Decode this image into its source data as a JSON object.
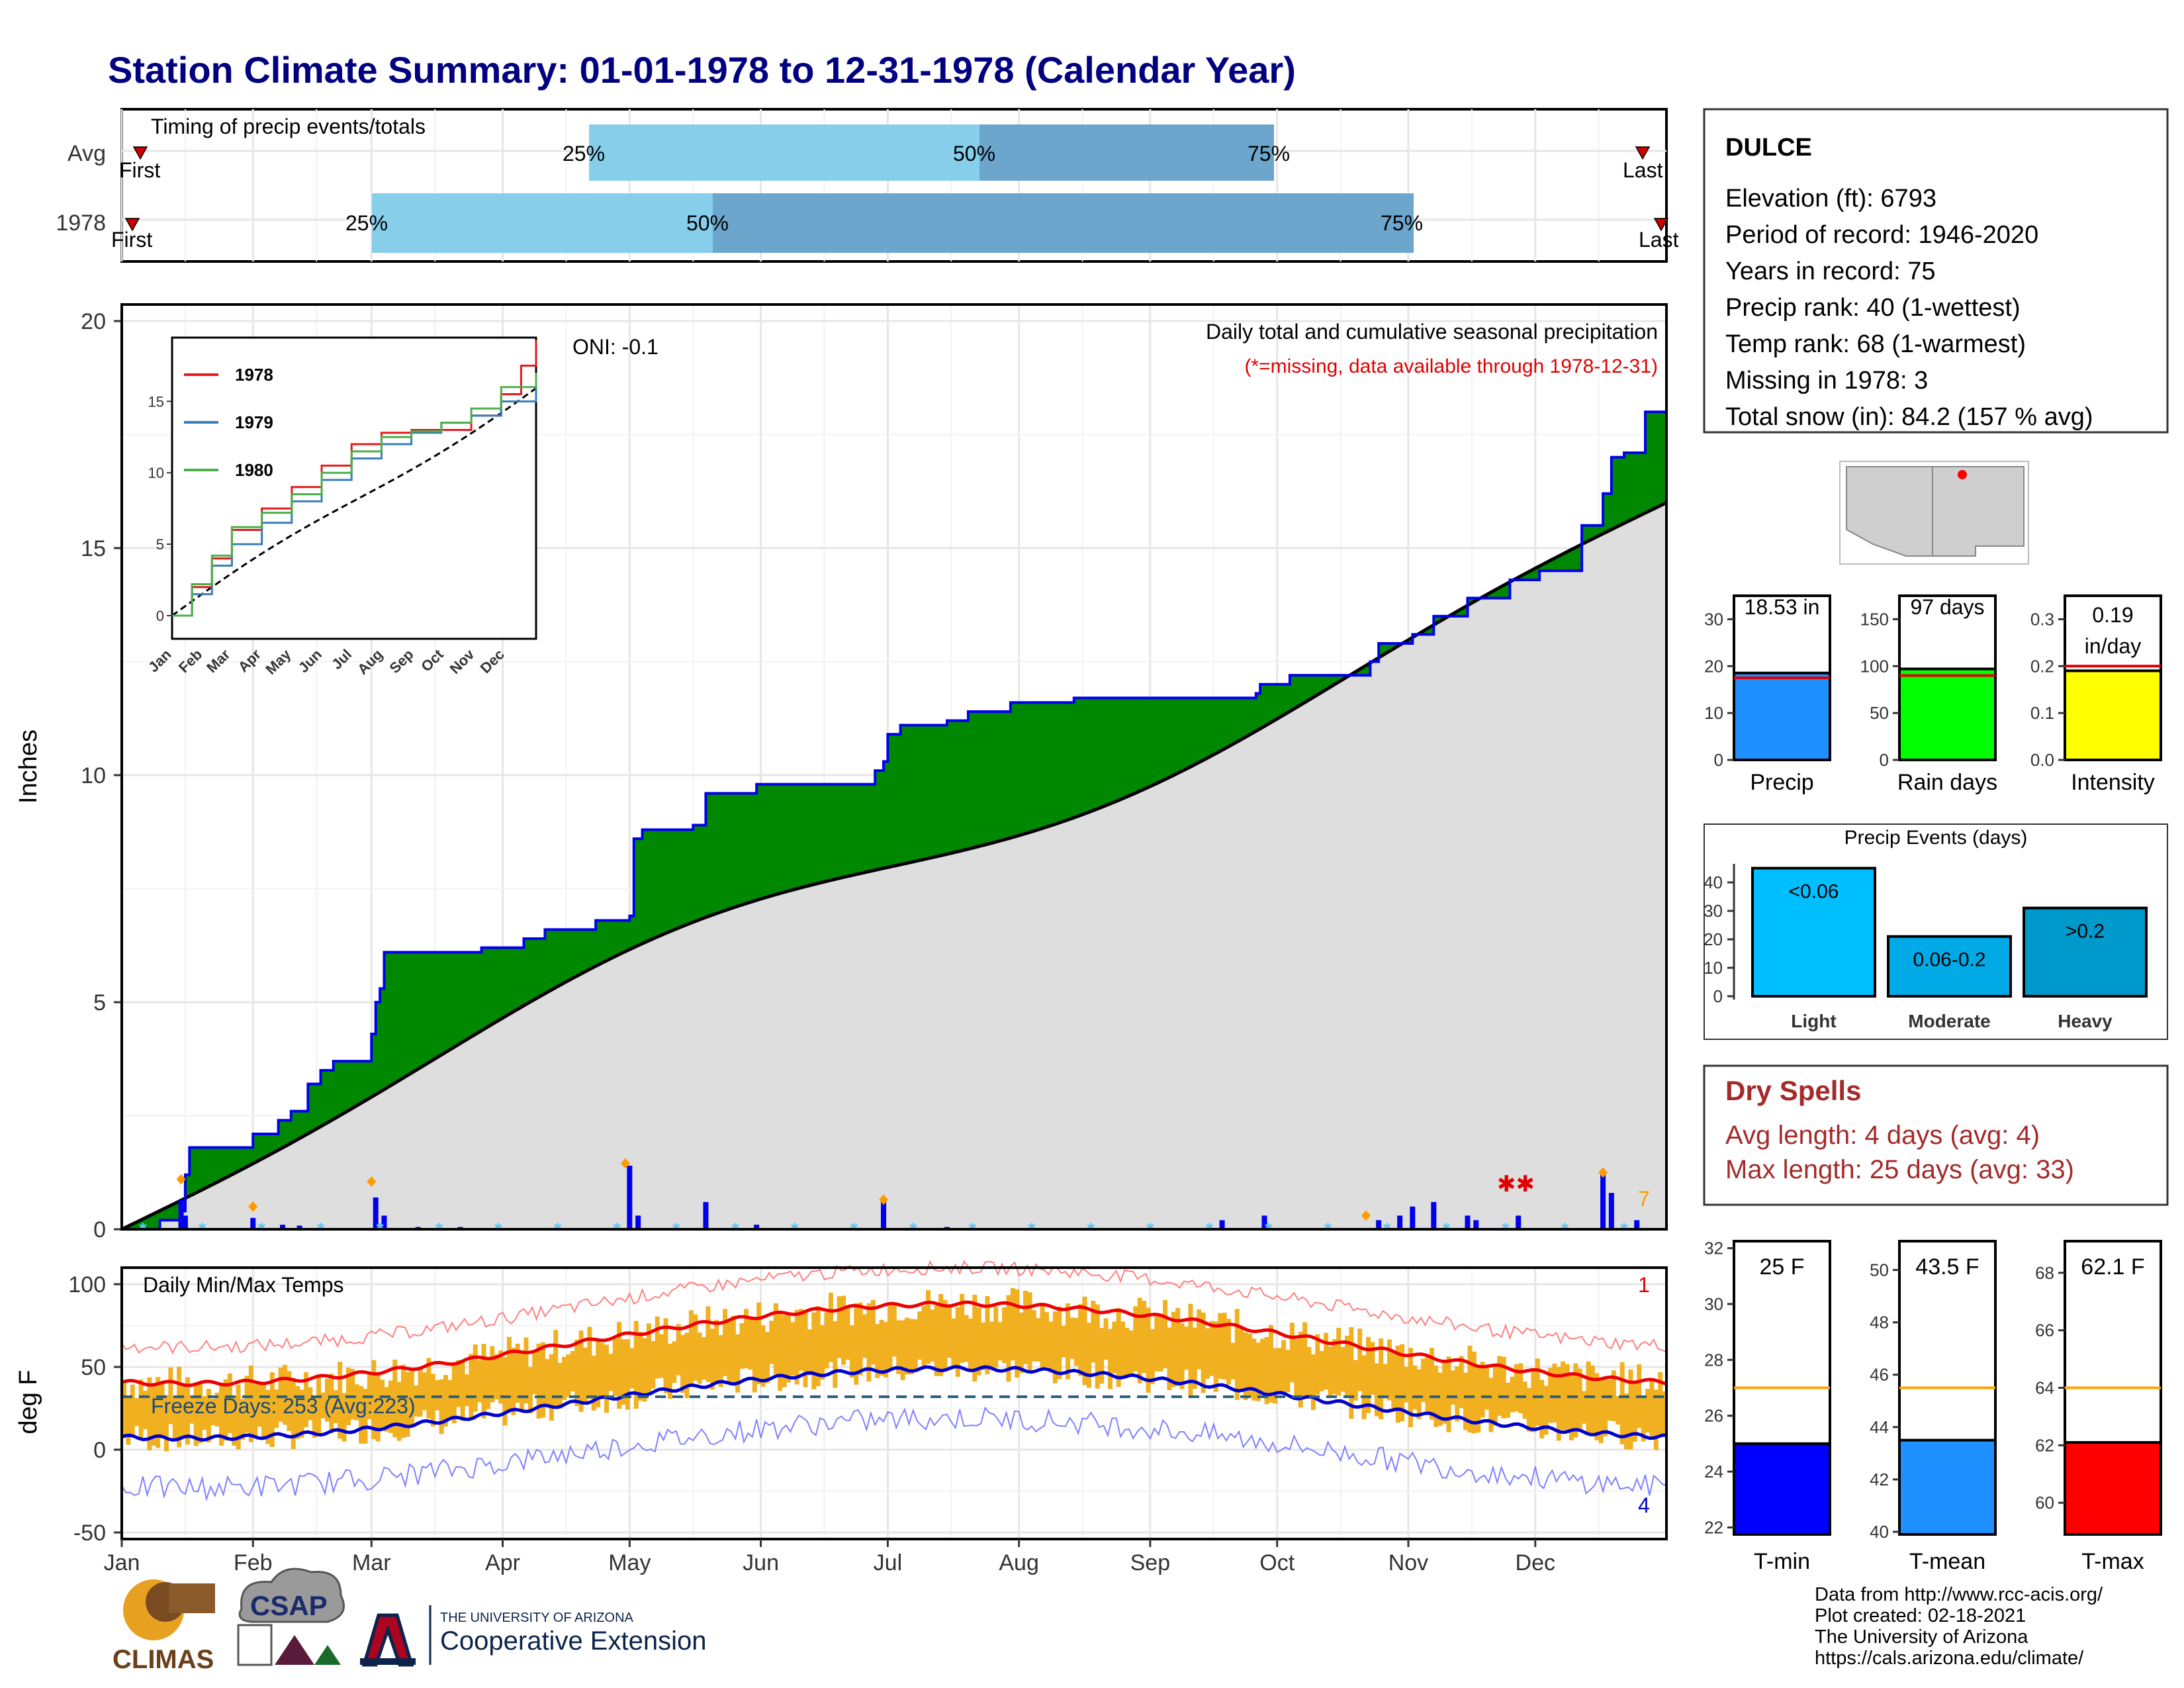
{
  "title": "Station Climate Summary: 01-01-1978 to 12-31-1978 (Calendar Year)",
  "months": [
    "Jan",
    "Feb",
    "Mar",
    "Apr",
    "May",
    "Jun",
    "Jul",
    "Aug",
    "Sep",
    "Oct",
    "Nov",
    "Dec"
  ],
  "timing": {
    "label": "Timing of precip events/totals",
    "rows": [
      "Avg",
      "1978"
    ],
    "first_label": "First",
    "last_label": "Last",
    "pct_labels": [
      "25%",
      "50%",
      "75%"
    ]
  },
  "precip_panel": {
    "ylabel": "Inches",
    "title": "Daily total and cumulative seasonal precipitation",
    "subtitle": "(*=missing, data available through 1978-12-31)",
    "oni": "ONI: -0.1",
    "corner_count": "7"
  },
  "temp_panel": {
    "ylabel": "deg F",
    "title": "Daily Min/Max Temps",
    "freeze": "Freeze Days: 253 (Avg:223)",
    "top_count": "1",
    "bottom_count": "4"
  },
  "info_box": {
    "station": "DULCE",
    "lines": [
      "Elevation (ft): 6793",
      "Period of record: 1946-2020",
      "Years in record: 75",
      "Precip rank: 40 (1-wettest)",
      "Temp rank: 68 (1-warmest)",
      "Missing in 1978: 3",
      "Total snow (in): 84.2 (157 % avg)"
    ]
  },
  "mini_bars": {
    "precip": {
      "label": "Precip",
      "value_text": "18.53 in",
      "value": 18.53,
      "avg": 17.5,
      "ymax": 35,
      "ticks": [
        0,
        10,
        20,
        30
      ],
      "color": "#1e90ff"
    },
    "rain_days": {
      "label": "Rain days",
      "value_text": "97 days",
      "value": 97,
      "avg": 90,
      "ymax": 175,
      "ticks": [
        0,
        50,
        100,
        150
      ],
      "color": "#00ff00"
    },
    "intensity": {
      "label": "Intensity",
      "value_text_1": "0.19",
      "value_text_2": "in/day",
      "value": 0.19,
      "avg": 0.2,
      "ymax": 0.35,
      "ticks": [
        "0.0",
        "0.1",
        "0.2",
        "0.3"
      ],
      "color": "#ffff00"
    }
  },
  "events": {
    "title": "Precip Events (days)",
    "ticks": [
      0,
      10,
      20,
      30,
      40
    ],
    "bars": [
      {
        "label": "Light",
        "bin": "<0.06",
        "value": 45,
        "color": "#00bfff"
      },
      {
        "label": "Moderate",
        "bin": "0.06-0.2",
        "value": 21,
        "color": "#00aae6"
      },
      {
        "label": "Heavy",
        "bin": ">0.2",
        "value": 31,
        "color": "#0099cc"
      }
    ]
  },
  "dry_spells": {
    "title": "Dry Spells",
    "avg": "Avg length: 4 days (avg: 4)",
    "max": "Max length: 25 days (avg: 33)"
  },
  "temp_bars": {
    "tmin": {
      "label": "T-min",
      "value_text": "25 F",
      "value": 25,
      "avg": 27,
      "range": [
        21.75,
        32.25
      ],
      "ticks": [
        22,
        24,
        26,
        28,
        30,
        32
      ],
      "color": "#0000ff"
    },
    "tmean": {
      "label": "T-mean",
      "value_text": "43.5 F",
      "value": 43.5,
      "avg": 45.5,
      "range": [
        39.9,
        51.1
      ],
      "ticks": [
        40,
        42,
        44,
        46,
        48,
        50
      ],
      "color": "#1e90ff"
    },
    "tmax": {
      "label": "T-max",
      "value_text": "62.1 F",
      "value": 62.1,
      "avg": 64,
      "range": [
        58.9,
        69.1
      ],
      "ticks": [
        60,
        62,
        64,
        66,
        68
      ],
      "color": "#ff0000"
    }
  },
  "inset": {
    "legend": [
      "1978",
      "1979",
      "1980"
    ],
    "colors": [
      "#e41a1c",
      "#377eb8",
      "#4daf4a"
    ],
    "yticks": [
      0,
      5,
      10,
      15
    ]
  },
  "credits": [
    "Data from http://www.rcc-acis.org/",
    "Plot created: 02-18-2021",
    "The University of Arizona",
    "https://cals.arizona.edu/climate/"
  ],
  "logos": {
    "climas": "CLIMAS",
    "csap": "CSAP",
    "ua_line1": "THE UNIVERSITY OF ARIZONA",
    "ua_line2": "Cooperative Extension"
  },
  "chart_data": [
    {
      "type": "area",
      "title": "Daily total and cumulative seasonal precipitation",
      "ylabel": "Inches",
      "ylim": [
        0,
        20
      ],
      "x_unit": "day of year",
      "cumulative_1978": [
        [
          1,
          0.1
        ],
        [
          14,
          0.7
        ],
        [
          15,
          1.5
        ],
        [
          16,
          1.8
        ],
        [
          32,
          2.0
        ],
        [
          37,
          2.2
        ],
        [
          45,
          2.5
        ],
        [
          50,
          2.7
        ],
        [
          55,
          2.6
        ],
        [
          60,
          3.3
        ],
        [
          65,
          3.6
        ],
        [
          70,
          3.6
        ],
        [
          80,
          3.7
        ],
        [
          90,
          4.3
        ],
        [
          92,
          5.0
        ],
        [
          93,
          5.8
        ],
        [
          95,
          6.1
        ],
        [
          110,
          6.1
        ],
        [
          125,
          6.2
        ],
        [
          135,
          6.5
        ],
        [
          145,
          6.8
        ],
        [
          165,
          6.8
        ],
        [
          175,
          6.9
        ],
        [
          190,
          7.0
        ],
        [
          215,
          7.0
        ],
        [
          227,
          7.6
        ],
        [
          228,
          8.4
        ],
        [
          229,
          8.7
        ],
        [
          235,
          8.9
        ],
        [
          245,
          8.9
        ],
        [
          250,
          9.6
        ],
        [
          265,
          9.8
        ],
        [
          280,
          9.8
        ],
        [
          300,
          9.8
        ],
        [
          320,
          9.9
        ],
        [
          325,
          10.1
        ],
        [
          350,
          10.1
        ],
        [
          360,
          10.8
        ],
        [
          380,
          10.9
        ],
        [
          395,
          11.2
        ],
        [
          420,
          11.3
        ],
        [
          440,
          11.4
        ],
        [
          450,
          11.6
        ],
        [
          470,
          11.6
        ],
        [
          500,
          11.6
        ],
        [
          520,
          11.7
        ],
        [
          540,
          11.7
        ],
        [
          575,
          11.8
        ],
        [
          580,
          12.1
        ],
        [
          590,
          12.2
        ],
        [
          600,
          12.2
        ],
        [
          620,
          12.2
        ],
        [
          640,
          12.6
        ],
        [
          650,
          12.8
        ],
        [
          660,
          13.1
        ],
        [
          665,
          13.3
        ],
        [
          690,
          13.4
        ],
        [
          700,
          13.9
        ],
        [
          720,
          14.2
        ],
        [
          740,
          14.6
        ],
        [
          755,
          15.2
        ],
        [
          790,
          15.4
        ],
        [
          800,
          15.8
        ],
        [
          810,
          16.1
        ],
        [
          815,
          17.3
        ],
        [
          823,
          18.0
        ],
        [
          850,
          18.53
        ]
      ],
      "cumulative_avg_end": 16.0,
      "notes": "cumulative 1978 above average (green), below average (brown)"
    },
    {
      "type": "bar",
      "title": "Daily Min/Max Temps",
      "ylabel": "deg F",
      "ylim": [
        -55,
        105
      ],
      "avg_max_start": 40,
      "avg_max_peak": 88,
      "avg_max_end": 40,
      "avg_min_start": 7,
      "avg_min_peak": 49,
      "avg_min_end": 7,
      "freeze_line": 32
    }
  ]
}
